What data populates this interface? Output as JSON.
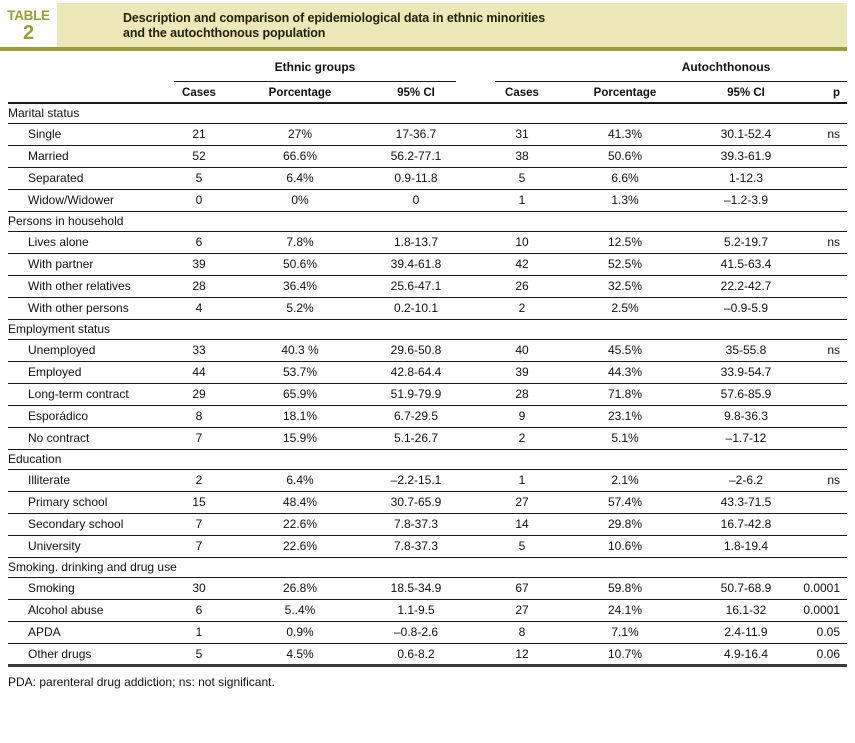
{
  "colors": {
    "olive": "#9b9d35",
    "beige": "#ece8b8",
    "rule_dark": "#1a1a1a",
    "heavy_rule": "#3a3a3a",
    "text": "#111111"
  },
  "header": {
    "table_word": "TABLE",
    "table_number": "2",
    "title_line1": "Description and comparison of epidemiological data in ethnic minorities",
    "title_line2": "and the autochthonous population"
  },
  "table": {
    "group_headers": [
      {
        "label": "Ethnic groups"
      },
      {
        "label": "Autochthonous"
      }
    ],
    "column_headers": [
      "Cases",
      "Porcentage",
      "95% CI",
      "Cases",
      "Porcentage",
      "95% CI",
      "p"
    ],
    "sections": [
      {
        "name": "Marital status",
        "rows": [
          {
            "label": "Single",
            "cells": [
              "21",
              "27%",
              "17-36.7",
              "31",
              "41.3%",
              "30.1-52.4",
              "ns"
            ]
          },
          {
            "label": "Married",
            "cells": [
              "52",
              "66.6%",
              "56.2-77.1",
              "38",
              "50.6%",
              "39.3-61.9",
              ""
            ]
          },
          {
            "label": "Separated",
            "cells": [
              "5",
              "6.4%",
              "0.9-11.8",
              "5",
              "6.6%",
              "1-12.3",
              ""
            ]
          },
          {
            "label": "Widow/Widower",
            "cells": [
              "0",
              "0%",
              "0",
              "1",
              "1.3%",
              "–1.2-3.9",
              ""
            ]
          }
        ]
      },
      {
        "name": "Persons in household",
        "rows": [
          {
            "label": "Lives alone",
            "cells": [
              "6",
              "7.8%",
              "1.8-13.7",
              "10",
              "12.5%",
              "5.2-19.7",
              "ns"
            ]
          },
          {
            "label": "With partner",
            "cells": [
              "39",
              "50.6%",
              "39.4-61.8",
              "42",
              "52.5%",
              "41.5-63.4",
              ""
            ]
          },
          {
            "label": "With other relatives",
            "cells": [
              "28",
              "36.4%",
              "25.6-47.1",
              "26",
              "32.5%",
              "22.2-42.7",
              ""
            ]
          },
          {
            "label": "With other persons",
            "cells": [
              "4",
              "5.2%",
              "0.2-10.1",
              "2",
              "2.5%",
              "–0.9-5.9",
              ""
            ]
          }
        ]
      },
      {
        "name": "Employment status",
        "rows": [
          {
            "label": "Unemployed",
            "cells": [
              "33",
              "40.3 %",
              "29.6-50.8",
              "40",
              "45.5%",
              "35-55.8",
              "ns"
            ]
          },
          {
            "label": "Employed",
            "cells": [
              "44",
              "53.7%",
              "42.8-64.4",
              "39",
              "44.3%",
              "33.9-54.7",
              ""
            ]
          },
          {
            "label": "Long-term contract",
            "cells": [
              "29",
              "65.9%",
              "51.9-79.9",
              "28",
              "71.8%",
              "57.6-85.9",
              ""
            ]
          },
          {
            "label": "Esporádico",
            "cells": [
              "8",
              "18.1%",
              "6.7-29.5",
              "9",
              "23.1%",
              "9.8-36.3",
              ""
            ]
          },
          {
            "label": "No contract",
            "cells": [
              "7",
              "15.9%",
              "5.1-26.7",
              "2",
              "5.1%",
              "–1.7-12",
              ""
            ]
          }
        ]
      },
      {
        "name": "Education",
        "rows": [
          {
            "label": "Illiterate",
            "cells": [
              "2",
              "6.4%",
              "–2.2-15.1",
              "1",
              "2.1%",
              "–2-6.2",
              "ns"
            ]
          },
          {
            "label": "Primary school",
            "cells": [
              "15",
              "48.4%",
              "30.7-65.9",
              "27",
              "57.4%",
              "43.3-71.5",
              ""
            ]
          },
          {
            "label": "Secondary school",
            "cells": [
              "7",
              "22.6%",
              "7.8-37.3",
              "14",
              "29.8%",
              "16.7-42.8",
              ""
            ]
          },
          {
            "label": "University",
            "cells": [
              "7",
              "22.6%",
              "7.8-37.3",
              "5",
              "10.6%",
              "1.8-19.4",
              ""
            ]
          }
        ]
      },
      {
        "name": "Smoking. drinking and drug use",
        "rows": [
          {
            "label": "Smoking",
            "cells": [
              "30",
              "26.8%",
              "18.5-34.9",
              "67",
              "59.8%",
              "50.7-68.9",
              "0.0001"
            ]
          },
          {
            "label": "Alcohol abuse",
            "cells": [
              "6",
              "5..4%",
              "1.1-9.5",
              "27",
              "24.1%",
              "16.1-32",
              "0.0001"
            ]
          },
          {
            "label": "APDA",
            "cells": [
              "1",
              "0.9%",
              "–0.8-2.6",
              "8",
              "7.1%",
              "2.4-11.9",
              "0.05"
            ]
          },
          {
            "label": "Other drugs",
            "cells": [
              "5",
              "4.5%",
              "0.6-8.2",
              "12",
              "10.7%",
              "4.9-16.4",
              "0.06"
            ]
          }
        ]
      }
    ]
  },
  "footnote": "PDA: parenteral drug addiction; ns: not significant."
}
